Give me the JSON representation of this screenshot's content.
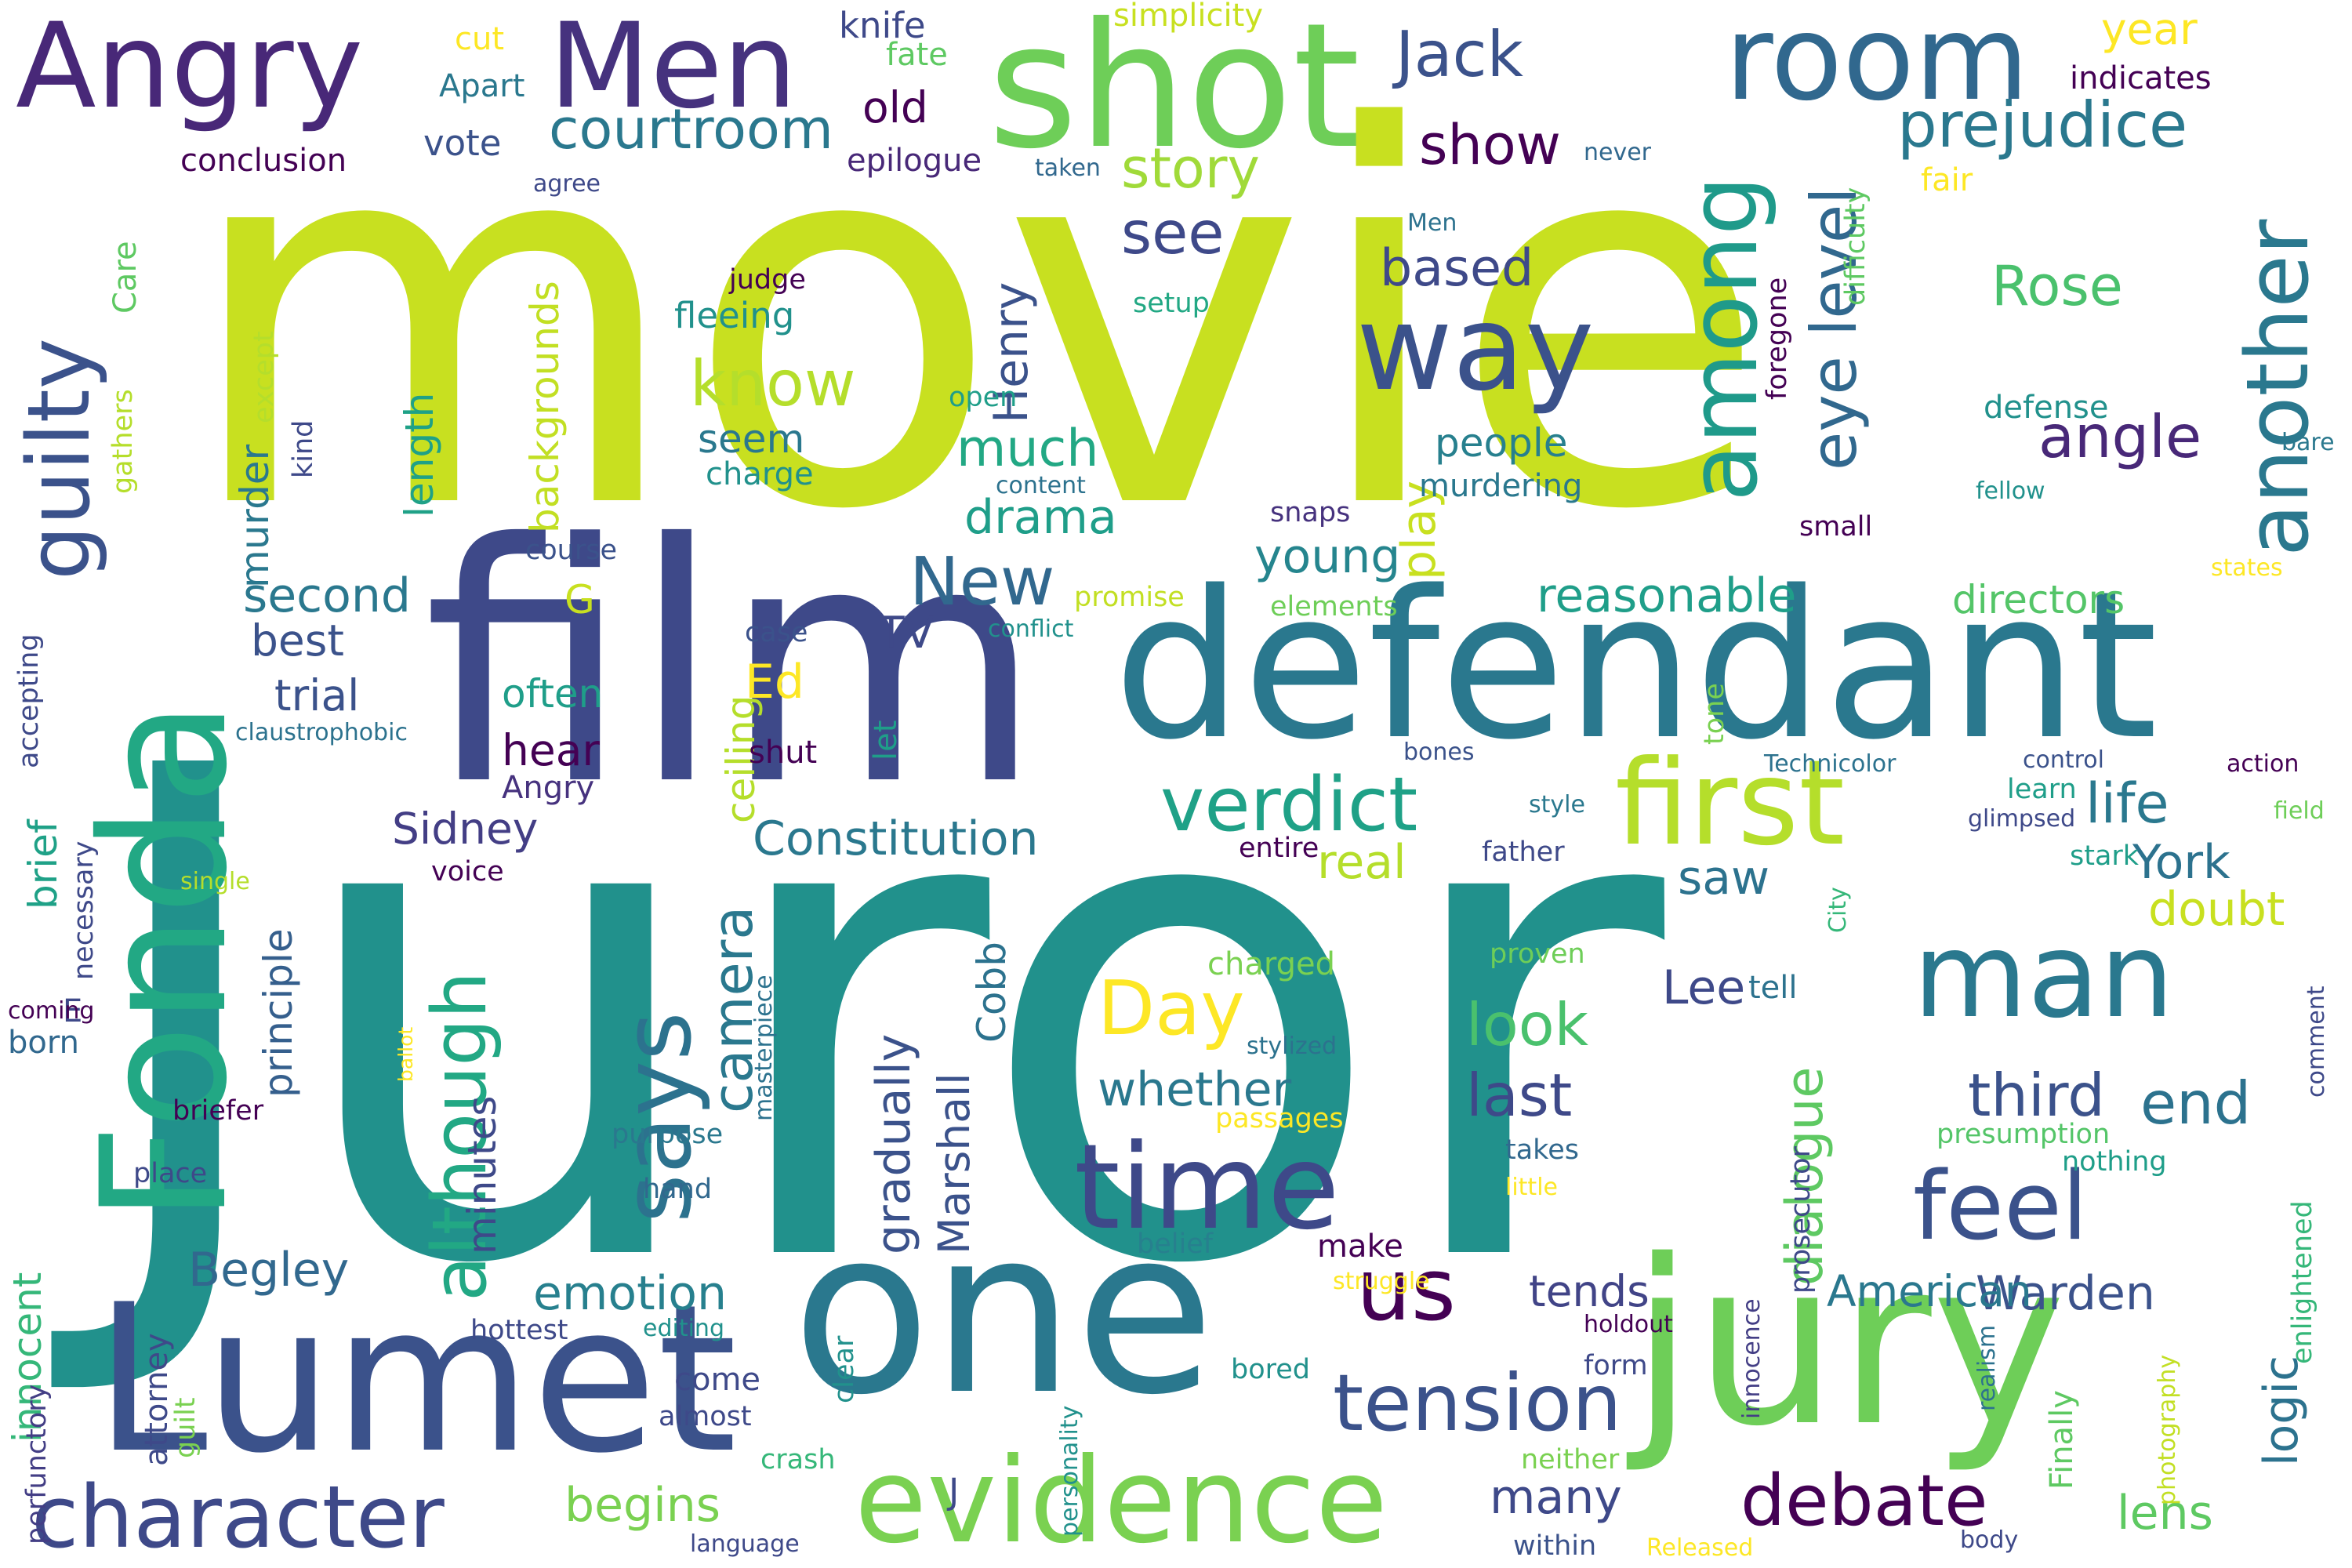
{
  "words": [
    {
      "text": "movie",
      "color": "#c8e020"
    },
    {
      "text": "Juror",
      "color": "#21918c"
    },
    {
      "text": "film",
      "color": "#3e4989"
    },
    {
      "text": "defendant",
      "color": "#2a788e"
    },
    {
      "text": "one",
      "color": "#2a788e"
    },
    {
      "text": "jury",
      "color": "#6ece58"
    },
    {
      "text": "Lumet",
      "color": "#3b528b"
    },
    {
      "text": "Fonda",
      "color": "#22a884"
    },
    {
      "text": "shot",
      "color": "#6ece58"
    },
    {
      "text": "Angry",
      "color": "#482878"
    },
    {
      "text": "Men",
      "color": "#46327e"
    },
    {
      "text": "room",
      "color": "#31688e"
    },
    {
      "text": "man",
      "color": "#2a788e"
    },
    {
      "text": "way",
      "color": "#3b528b"
    },
    {
      "text": "first",
      "color": "#b5de2b"
    },
    {
      "text": "evidence",
      "color": "#7ad151"
    },
    {
      "text": "time",
      "color": "#3e4989"
    },
    {
      "text": "feel",
      "color": "#3b528b"
    },
    {
      "text": "says",
      "color": "#2c728e"
    },
    {
      "text": "among",
      "color": "#1f9a8a"
    },
    {
      "text": "another",
      "color": "#2a788e"
    },
    {
      "text": "character",
      "color": "#3e4989"
    },
    {
      "text": "us",
      "color": "#440154"
    },
    {
      "text": "tension",
      "color": "#3b528b"
    },
    {
      "text": "debate",
      "color": "#440154"
    },
    {
      "text": "guilty",
      "color": "#3b528b"
    },
    {
      "text": "verdict",
      "color": "#1fa187"
    },
    {
      "text": "Day",
      "color": "#fde725"
    },
    {
      "text": "although",
      "color": "#22a884"
    },
    {
      "text": "camera",
      "color": "#2a788e"
    },
    {
      "text": "Jack",
      "color": "#3b528b"
    },
    {
      "text": "prejudice",
      "color": "#2a788e"
    },
    {
      "text": "New",
      "color": "#31688e"
    },
    {
      "text": "story",
      "color": "#a0da39"
    },
    {
      "text": "show",
      "color": "#440154"
    },
    {
      "text": "courtroom",
      "color": "#2a788e"
    },
    {
      "text": "see",
      "color": "#3e4989"
    },
    {
      "text": "know",
      "color": "#b5de2b"
    },
    {
      "text": "eye level",
      "color": "#31688e"
    },
    {
      "text": "Rose",
      "color": "#4ac16d"
    },
    {
      "text": "angle",
      "color": "#482878"
    },
    {
      "text": "based",
      "color": "#3e4989"
    },
    {
      "text": "Henry",
      "color": "#3b528b"
    },
    {
      "text": "much",
      "color": "#22a884"
    },
    {
      "text": "drama",
      "color": "#1f9e89"
    },
    {
      "text": "young",
      "color": "#25858e"
    },
    {
      "text": "play",
      "color": "#c8e020"
    },
    {
      "text": "people",
      "color": "#27808e"
    },
    {
      "text": "reasonable",
      "color": "#1f9e89"
    },
    {
      "text": "directors",
      "color": "#54c568"
    },
    {
      "text": "life",
      "color": "#2a788e"
    },
    {
      "text": "York",
      "color": "#2c728e"
    },
    {
      "text": "doubt",
      "color": "#c8e020"
    },
    {
      "text": "third",
      "color": "#3b528b"
    },
    {
      "text": "end",
      "color": "#2c728e"
    },
    {
      "text": "last",
      "color": "#3e4989"
    },
    {
      "text": "look",
      "color": "#4ac16d"
    },
    {
      "text": "whether",
      "color": "#2a788e"
    },
    {
      "text": "Lee",
      "color": "#3e4989"
    },
    {
      "text": "saw",
      "color": "#2c728e"
    },
    {
      "text": "dialogue",
      "color": "#5ec962"
    },
    {
      "text": "logic",
      "color": "#2c728e"
    },
    {
      "text": "Warden",
      "color": "#3b528b"
    },
    {
      "text": "American",
      "color": "#2a788e"
    },
    {
      "text": "tends",
      "color": "#414487"
    },
    {
      "text": "many",
      "color": "#3e4989"
    },
    {
      "text": "lens",
      "color": "#5ec962"
    },
    {
      "text": "Begley",
      "color": "#31688e"
    },
    {
      "text": "emotion",
      "color": "#27808e"
    },
    {
      "text": "begins",
      "color": "#7ad151"
    },
    {
      "text": "Constitution",
      "color": "#2a788e"
    },
    {
      "text": "Sidney",
      "color": "#433e85"
    },
    {
      "text": "principle",
      "color": "#355f8d"
    },
    {
      "text": "minutes",
      "color": "#3e4989"
    },
    {
      "text": "gradually",
      "color": "#3b528b"
    },
    {
      "text": "Marshall",
      "color": "#3b528b"
    },
    {
      "text": "Cobb",
      "color": "#2c728e"
    },
    {
      "text": "second",
      "color": "#2a788e"
    },
    {
      "text": "best",
      "color": "#3b528b"
    },
    {
      "text": "trial",
      "color": "#3b528b"
    },
    {
      "text": "often",
      "color": "#1f9e89"
    },
    {
      "text": "hear",
      "color": "#440154"
    },
    {
      "text": "Ed",
      "color": "#fde725"
    },
    {
      "text": "ceiling",
      "color": "#b5de2b"
    },
    {
      "text": "TV",
      "color": "#3e4989"
    },
    {
      "text": "let",
      "color": "#1f9e89"
    },
    {
      "text": "murder",
      "color": "#2a788e"
    },
    {
      "text": "backgrounds",
      "color": "#c2df23"
    },
    {
      "text": "length",
      "color": "#1fa187"
    },
    {
      "text": "innocent",
      "color": "#35b779"
    },
    {
      "text": "brief",
      "color": "#1fa187"
    },
    {
      "text": "real",
      "color": "#b5de2b"
    },
    {
      "text": "knife",
      "color": "#3e4989"
    },
    {
      "text": "old",
      "color": "#440154"
    },
    {
      "text": "vote",
      "color": "#3b528b"
    },
    {
      "text": "conclusion",
      "color": "#440154"
    },
    {
      "text": "Apart",
      "color": "#2a788e"
    },
    {
      "text": "cut",
      "color": "#fde725"
    },
    {
      "text": "fate",
      "color": "#5ec962"
    },
    {
      "text": "simplicity",
      "color": "#c8e020"
    },
    {
      "text": "year",
      "color": "#fde725"
    },
    {
      "text": "epilogue",
      "color": "#482878"
    },
    {
      "text": "indicates",
      "color": "#440154"
    },
    {
      "text": "fair",
      "color": "#fde725"
    },
    {
      "text": "agree",
      "color": "#3e4989"
    },
    {
      "text": "taken",
      "color": "#31688e"
    },
    {
      "text": "never",
      "color": "#31688e"
    },
    {
      "text": "difficulty",
      "color": "#5ec962"
    },
    {
      "text": "Care",
      "color": "#5ec962"
    },
    {
      "text": "judge",
      "color": "#440154"
    },
    {
      "text": "fleeing",
      "color": "#21918c"
    },
    {
      "text": "Men",
      "color": "#2c728e"
    },
    {
      "text": "setup",
      "color": "#22a884"
    },
    {
      "text": "foregone",
      "color": "#440154"
    },
    {
      "text": "except",
      "color": "#b5de2b"
    },
    {
      "text": "gathers",
      "color": "#b5de2b"
    },
    {
      "text": "kind",
      "color": "#3e4989"
    },
    {
      "text": "open",
      "color": "#1f9e89"
    },
    {
      "text": "seem",
      "color": "#2a788e"
    },
    {
      "text": "charge",
      "color": "#21918c"
    },
    {
      "text": "content",
      "color": "#2c728e"
    },
    {
      "text": "defense",
      "color": "#21918c"
    },
    {
      "text": "bare",
      "color": "#2a788e"
    },
    {
      "text": "fellow",
      "color": "#21918c"
    },
    {
      "text": "small",
      "color": "#440154"
    },
    {
      "text": "snaps",
      "color": "#46327e"
    },
    {
      "text": "murdering",
      "color": "#2a788e"
    },
    {
      "text": "course",
      "color": "#3b528b"
    },
    {
      "text": "promise",
      "color": "#c2df23"
    },
    {
      "text": "G",
      "color": "#c8e020"
    },
    {
      "text": "conflict",
      "color": "#21918c"
    },
    {
      "text": "elements",
      "color": "#6ece58"
    },
    {
      "text": "states",
      "color": "#fde725"
    },
    {
      "text": "case",
      "color": "#3b528b"
    },
    {
      "text": "accepting",
      "color": "#3e4989"
    },
    {
      "text": "claustrophobic",
      "color": "#2c728e"
    },
    {
      "text": "shut",
      "color": "#440154"
    },
    {
      "text": "Angry",
      "color": "#46327e"
    },
    {
      "text": "bones",
      "color": "#3b528b"
    },
    {
      "text": "tone",
      "color": "#7ad151"
    },
    {
      "text": "Technicolor",
      "color": "#2c728e"
    },
    {
      "text": "control",
      "color": "#3b528b"
    },
    {
      "text": "action",
      "color": "#440154"
    },
    {
      "text": "style",
      "color": "#2a788e"
    },
    {
      "text": "learn",
      "color": "#1f9e89"
    },
    {
      "text": "glimpsed",
      "color": "#3e4989"
    },
    {
      "text": "field",
      "color": "#6ece58"
    },
    {
      "text": "necessary",
      "color": "#3e4989"
    },
    {
      "text": "single",
      "color": "#b5de2b"
    },
    {
      "text": "voice",
      "color": "#440154"
    },
    {
      "text": "entire",
      "color": "#440154"
    },
    {
      "text": "father",
      "color": "#3e4989"
    },
    {
      "text": "stark",
      "color": "#1f9e89"
    },
    {
      "text": "City",
      "color": "#35b779"
    },
    {
      "text": "charged",
      "color": "#7ad151"
    },
    {
      "text": "proven",
      "color": "#6ece58"
    },
    {
      "text": "E",
      "color": "#3e4989"
    },
    {
      "text": "coming",
      "color": "#440154"
    },
    {
      "text": "born",
      "color": "#31688e"
    },
    {
      "text": "ballot",
      "color": "#fde725"
    },
    {
      "text": "masterpiece",
      "color": "#2c728e"
    },
    {
      "text": "stylized",
      "color": "#2c728e"
    },
    {
      "text": "comment",
      "color": "#3e4989"
    },
    {
      "text": "tell",
      "color": "#2c728e"
    },
    {
      "text": "briefer",
      "color": "#440154"
    },
    {
      "text": "purpose",
      "color": "#2a788e"
    },
    {
      "text": "passages",
      "color": "#fde725"
    },
    {
      "text": "presumption",
      "color": "#54c568"
    },
    {
      "text": "place",
      "color": "#3e4989"
    },
    {
      "text": "takes",
      "color": "#31688e"
    },
    {
      "text": "little",
      "color": "#fde725"
    },
    {
      "text": "nothing",
      "color": "#1f9e89"
    },
    {
      "text": "hand",
      "color": "#31688e"
    },
    {
      "text": "belief",
      "color": "#27808e"
    },
    {
      "text": "make",
      "color": "#440154"
    },
    {
      "text": "prosecutor",
      "color": "#3e4989"
    },
    {
      "text": "struggle",
      "color": "#fde725"
    },
    {
      "text": "enlightened",
      "color": "#35b779"
    },
    {
      "text": "perfunctory",
      "color": "#433e85"
    },
    {
      "text": "hottest",
      "color": "#3e4989"
    },
    {
      "text": "editing",
      "color": "#21918c"
    },
    {
      "text": "holdout",
      "color": "#440154"
    },
    {
      "text": "innocence",
      "color": "#433e85"
    },
    {
      "text": "Finally",
      "color": "#5ec962"
    },
    {
      "text": "realism",
      "color": "#2c728e"
    },
    {
      "text": "photography",
      "color": "#c2df23"
    },
    {
      "text": "attorney",
      "color": "#3e4989"
    },
    {
      "text": "guilt",
      "color": "#7ad151"
    },
    {
      "text": "come",
      "color": "#3e4989"
    },
    {
      "text": "almost",
      "color": "#3e4989"
    },
    {
      "text": "J",
      "color": "#3e4989"
    },
    {
      "text": "clear",
      "color": "#21918c"
    },
    {
      "text": "crash",
      "color": "#35b779"
    },
    {
      "text": "personality",
      "color": "#21918c"
    },
    {
      "text": "bored",
      "color": "#21918c"
    },
    {
      "text": "form",
      "color": "#3e4989"
    },
    {
      "text": "neither",
      "color": "#7ad151"
    },
    {
      "text": "within",
      "color": "#3b528b"
    },
    {
      "text": "language",
      "color": "#3e4989"
    },
    {
      "text": "Released",
      "color": "#fde725"
    },
    {
      "text": "body",
      "color": "#3e4989"
    }
  ]
}
